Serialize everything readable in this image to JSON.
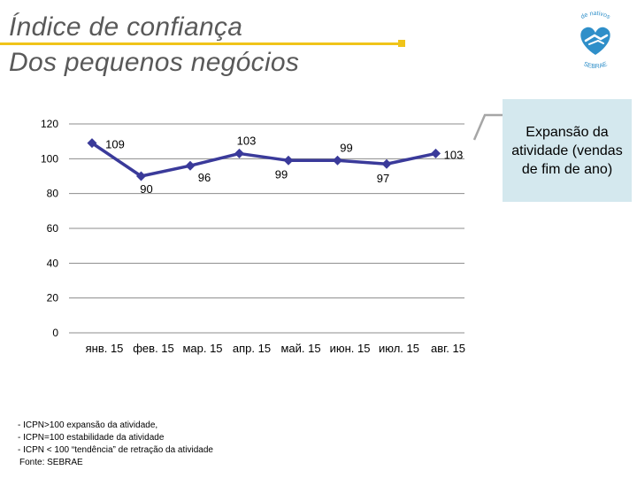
{
  "title": {
    "line1": "Índice de confiança",
    "line2": "Dos pequenos negócios"
  },
  "colors": {
    "accent": "#f0c419",
    "series": "#3a3a9a",
    "callout_bg": "#d4e8ee",
    "logo_blue": "#2f8fc9"
  },
  "logo": {
    "text_top": "de nativos",
    "text_bottom": "SEBRAE",
    "icon": "heart-hands-icon"
  },
  "chart_data": {
    "type": "line",
    "categories": [
      "янв. 15",
      "фев. 15",
      "мар. 15",
      "апр. 15",
      "май. 15",
      "июн. 15",
      "июл. 15",
      "авг. 15"
    ],
    "series": [
      {
        "name": "ICPN",
        "values": [
          109,
          90,
          96,
          103,
          99,
          99,
          97,
          103
        ]
      }
    ],
    "data_labels": [
      "109",
      "90",
      "96",
      "103",
      "99",
      "99",
      "97",
      "103"
    ],
    "ylim": [
      0,
      120
    ],
    "yticks": [
      0,
      20,
      40,
      60,
      80,
      100,
      120
    ],
    "ytick_labels": [
      "0",
      "20",
      "40",
      "60",
      "80",
      "100",
      "120"
    ],
    "title": "",
    "xlabel": "",
    "ylabel": "",
    "grid": true,
    "legend": "none"
  },
  "callout": {
    "text": "Expansão da atividade (vendas de fim de ano)"
  },
  "notes": [
    "- ICPN>100 expansão da atividade,",
    "- ICPN=100 estabilidade da atividade",
    "- ICPN < 100 “tendência” de retração da atividade"
  ],
  "source": "Fonte: SEBRAE"
}
